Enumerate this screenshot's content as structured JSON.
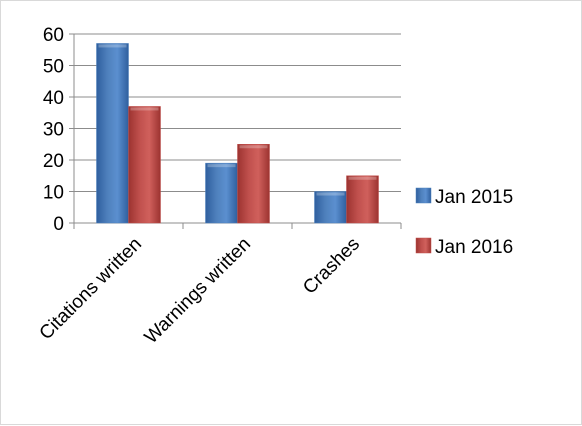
{
  "chart_data": {
    "type": "bar",
    "categories": [
      "Citations written",
      "Warnings written",
      "Crashes"
    ],
    "series": [
      {
        "name": "Jan 2015",
        "values": [
          57,
          19,
          10
        ],
        "color": "#4f81bd"
      },
      {
        "name": "Jan 2016",
        "values": [
          37,
          25,
          15
        ],
        "color": "#c0504d"
      }
    ],
    "ylim": [
      0,
      60
    ],
    "yticks": [
      0,
      10,
      20,
      30,
      40,
      50,
      60
    ],
    "grid": true,
    "legend": "right",
    "style": "3d-bevel"
  }
}
